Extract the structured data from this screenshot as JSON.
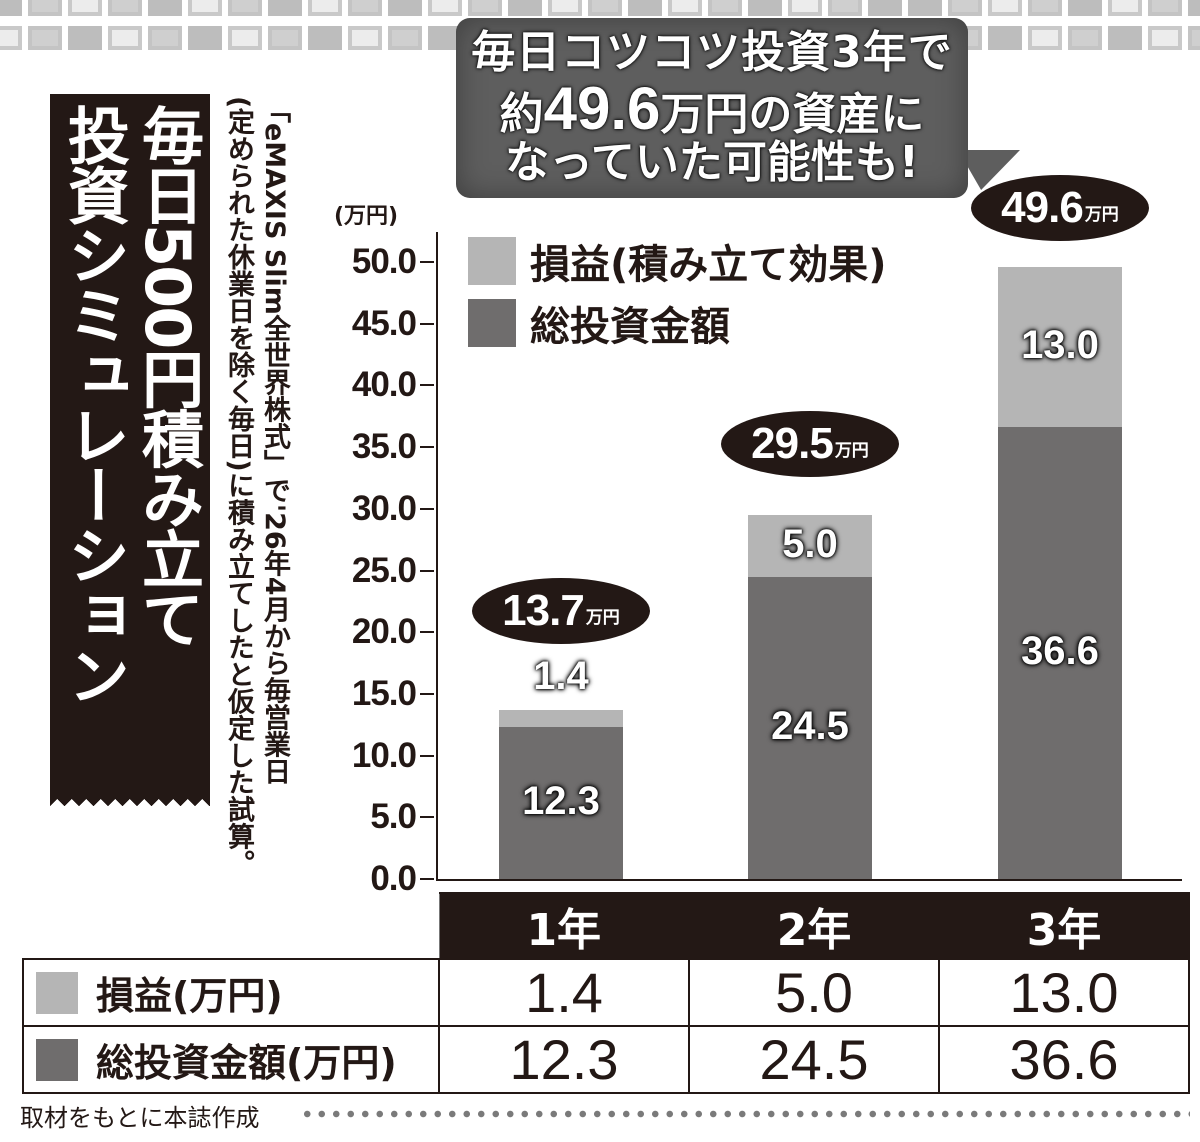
{
  "callout": {
    "line1": "毎日コツコツ投資3年で",
    "line2_prefix": "約",
    "line2_big": "49.6",
    "line2_suffix": "万円の資産に",
    "line3": "なっていた可能性も!"
  },
  "banner": {
    "col1": "毎日500円積み立て",
    "col2": "投資シミュレーション"
  },
  "note": {
    "line1": "「eMAXIS Slim全世界株式」で'26年4月から毎営業日",
    "line2": "(定められた休業日を除く毎日)に積み立てしたと仮定した試算。"
  },
  "colors": {
    "gain": "#b5b5b5",
    "base": "#6f6d6d",
    "dark": "#231815",
    "callout_bg": "#5e5e5e"
  },
  "chart_data": {
    "type": "bar",
    "stacked": true,
    "title": "毎日500円積み立て 投資シミュレーション",
    "ylabel": "(万円)",
    "xlabel": "",
    "ylim": [
      0,
      50
    ],
    "yticks": [
      "0.0",
      "5.0",
      "10.0",
      "15.0",
      "20.0",
      "25.0",
      "30.0",
      "35.0",
      "40.0",
      "45.0",
      "50.0"
    ],
    "categories": [
      "1年",
      "2年",
      "3年"
    ],
    "series": [
      {
        "name": "総投資金額",
        "color": "#6f6d6d",
        "values": [
          12.3,
          24.5,
          36.6
        ]
      },
      {
        "name": "損益(積み立て効果)",
        "color": "#b5b5b5",
        "values": [
          1.4,
          5.0,
          13.0
        ]
      }
    ],
    "totals": [
      13.7,
      29.5,
      49.6
    ],
    "total_unit": "万円",
    "legend": [
      "損益(積み立て効果)",
      "総投資金額"
    ],
    "legend_position": "upper-left-inside",
    "grid": false
  },
  "chart": {
    "y_unit": "(万円)",
    "legend": [
      {
        "label": "損益(積み立て効果)",
        "color": "#b5b5b5"
      },
      {
        "label": "総投資金額",
        "color": "#6f6d6d"
      }
    ],
    "bars": [
      {
        "gain_label": "1.4",
        "base_label": "12.3",
        "total": "13.7",
        "unit": "万円"
      },
      {
        "gain_label": "5.0",
        "base_label": "24.5",
        "total": "29.5",
        "unit": "万円"
      },
      {
        "gain_label": "13.0",
        "base_label": "36.6",
        "total": "49.6",
        "unit": "万円"
      }
    ]
  },
  "table": {
    "headers": [
      "1年",
      "2年",
      "3年"
    ],
    "rows": [
      {
        "label": "損益(万円)",
        "color": "#b5b5b5",
        "values": [
          "1.4",
          "5.0",
          "13.0"
        ]
      },
      {
        "label": "総投資金額(万円)",
        "color": "#6f6d6d",
        "values": [
          "12.3",
          "24.5",
          "36.6"
        ]
      }
    ]
  },
  "footer": {
    "source": "取材をもとに本誌作成"
  }
}
